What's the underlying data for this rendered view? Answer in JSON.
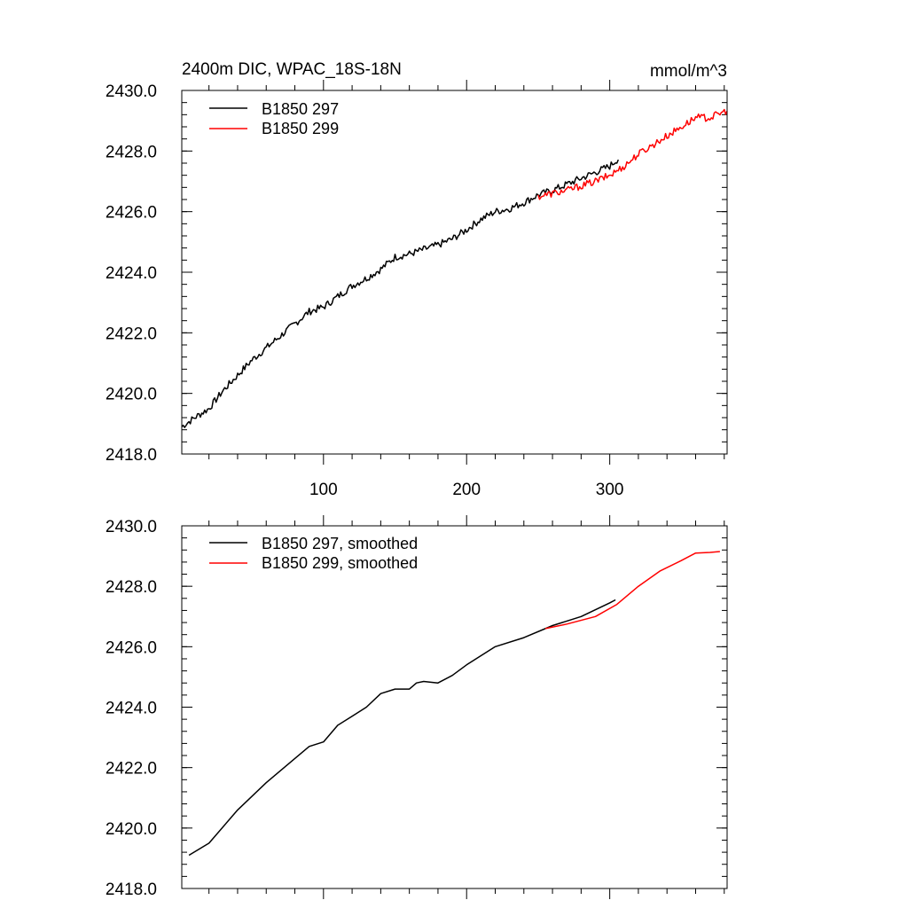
{
  "colors": {
    "black": "#000000",
    "red": "#ff0000"
  },
  "chart_data": [
    {
      "type": "line",
      "title_left": "2400m DIC, WPAC_18S-18N",
      "title_right": "mmol/m^3",
      "xlim": [
        1,
        382
      ],
      "ylim": [
        2418.0,
        2430.0
      ],
      "x_ticks": [
        100,
        200,
        300
      ],
      "x_tick_labels": [
        "100",
        "200",
        "300"
      ],
      "y_ticks": [
        2418,
        2420,
        2422,
        2424,
        2426,
        2428,
        2430
      ],
      "y_tick_labels": [
        "2418.0",
        "2420.0",
        "2422.0",
        "2424.0",
        "2426.0",
        "2428.0",
        "2430.0"
      ],
      "legend_position": "top-left",
      "series": [
        {
          "name": "B1850 297",
          "color": "#000000",
          "x": [
            1,
            10,
            20,
            30,
            40,
            50,
            60,
            70,
            80,
            90,
            100,
            110,
            120,
            130,
            140,
            150,
            160,
            170,
            180,
            190,
            200,
            210,
            220,
            230,
            240,
            250,
            260,
            270,
            280,
            290,
            300,
            306
          ],
          "y": [
            2418.9,
            2419.2,
            2419.5,
            2420.1,
            2420.6,
            2421.1,
            2421.5,
            2421.9,
            2422.3,
            2422.7,
            2422.85,
            2423.2,
            2423.55,
            2423.8,
            2424.1,
            2424.5,
            2424.6,
            2424.75,
            2424.9,
            2425.1,
            2425.4,
            2425.75,
            2426.0,
            2426.1,
            2426.3,
            2426.55,
            2426.7,
            2426.9,
            2427.1,
            2427.3,
            2427.5,
            2427.75
          ],
          "noise": 0.12
        },
        {
          "name": "B1850 299",
          "color": "#ff0000",
          "x": [
            250,
            260,
            270,
            280,
            290,
            300,
            310,
            320,
            330,
            340,
            350,
            360,
            370,
            380,
            382
          ],
          "y": [
            2426.5,
            2426.6,
            2426.7,
            2426.85,
            2427.0,
            2427.2,
            2427.5,
            2427.9,
            2428.2,
            2428.5,
            2428.8,
            2429.1,
            2429.1,
            2429.3,
            2429.35
          ],
          "noise": 0.12
        }
      ]
    },
    {
      "type": "line",
      "xlim": [
        1,
        382
      ],
      "ylim": [
        2418.0,
        2430.0
      ],
      "x_ticks": [
        100,
        200,
        300
      ],
      "y_ticks": [
        2418,
        2420,
        2422,
        2424,
        2426,
        2428,
        2430
      ],
      "y_tick_labels": [
        "2418.0",
        "2420.0",
        "2422.0",
        "2424.0",
        "2426.0",
        "2428.0",
        "2430.0"
      ],
      "legend_position": "top-left",
      "series": [
        {
          "name": "B1850 297, smoothed",
          "color": "#000000",
          "x": [
            6,
            20,
            40,
            60,
            80,
            90,
            100,
            110,
            120,
            130,
            140,
            150,
            160,
            165,
            170,
            180,
            190,
            200,
            220,
            240,
            260,
            280,
            300,
            304
          ],
          "y": [
            2419.1,
            2419.5,
            2420.6,
            2421.5,
            2422.3,
            2422.7,
            2422.85,
            2423.4,
            2423.7,
            2424.0,
            2424.45,
            2424.6,
            2424.6,
            2424.8,
            2424.85,
            2424.8,
            2425.05,
            2425.4,
            2426.0,
            2426.3,
            2426.7,
            2427.0,
            2427.45,
            2427.55
          ]
        },
        {
          "name": "B1850 299, smoothed",
          "color": "#ff0000",
          "x": [
            255,
            270,
            290,
            305,
            320,
            335,
            350,
            360,
            370,
            377
          ],
          "y": [
            2426.6,
            2426.75,
            2427.0,
            2427.4,
            2428.0,
            2428.5,
            2428.85,
            2429.1,
            2429.12,
            2429.15
          ]
        }
      ]
    }
  ]
}
